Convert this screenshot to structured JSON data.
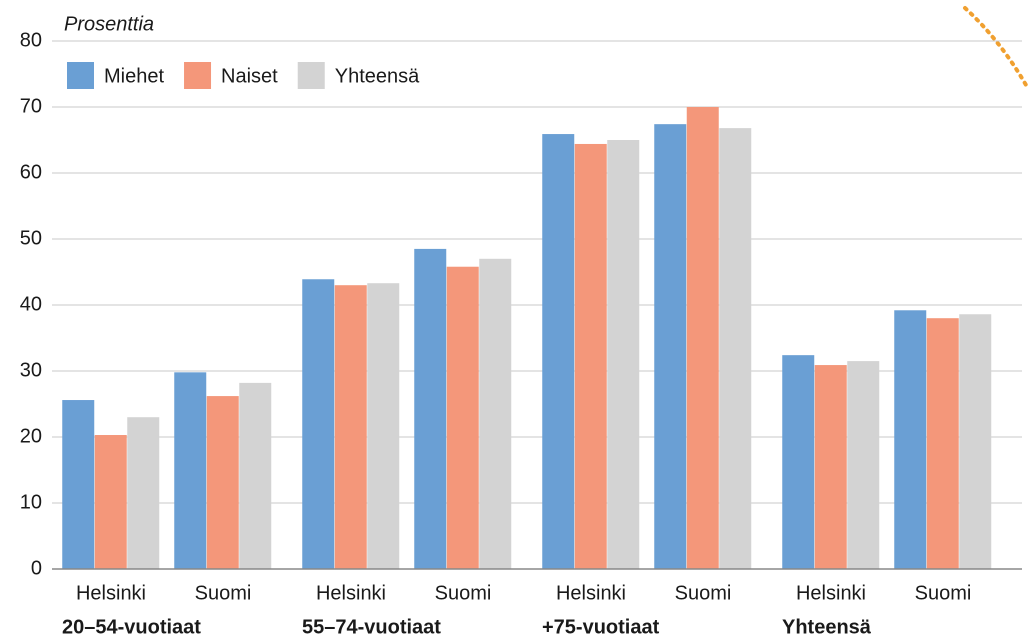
{
  "chart_data": {
    "type": "bar",
    "y_label": "Prosenttia",
    "categories": [
      "Helsinki",
      "Suomi",
      "Helsinki",
      "Suomi",
      "Helsinki",
      "Suomi",
      "Helsinki",
      "Suomi"
    ],
    "groups": [
      "20–54-vuotiaat",
      "55–74-vuotiaat",
      "+75-vuotiaat",
      "Yhteensä"
    ],
    "series": [
      {
        "name": "Miehet",
        "color": "#6a9fd4",
        "values": [
          25.6,
          29.8,
          43.9,
          48.5,
          65.9,
          67.4,
          32.4,
          39.2
        ]
      },
      {
        "name": "Naiset",
        "color": "#f4977a",
        "values": [
          20.3,
          26.2,
          43.0,
          45.8,
          64.4,
          70.0,
          30.9,
          38.0
        ]
      },
      {
        "name": "Yhteensä",
        "color": "#d3d3d3",
        "values": [
          23.0,
          28.2,
          43.3,
          47.0,
          65.0,
          66.8,
          31.5,
          38.6
        ]
      }
    ],
    "ylim": [
      0,
      80
    ],
    "yticks": [
      0,
      10,
      20,
      30,
      40,
      50,
      60,
      70,
      80
    ],
    "grid": true,
    "legend": "top-left"
  }
}
